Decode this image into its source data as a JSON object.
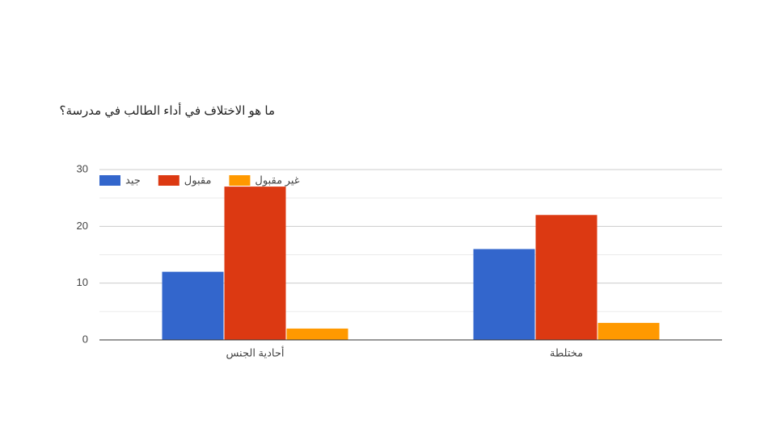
{
  "chart_data": {
    "type": "bar",
    "title": "ما هو الاختلاف في أداء الطالب في مدرسة؟",
    "categories": [
      "أحادية الجنس",
      "مختلطة"
    ],
    "series": [
      {
        "name": "جيد",
        "color": "#3366cc",
        "values": [
          12,
          16
        ]
      },
      {
        "name": "مقبول",
        "color": "#dc3912",
        "values": [
          27,
          22
        ]
      },
      {
        "name": "غير مقبول",
        "color": "#ff9900",
        "values": [
          2,
          3
        ]
      }
    ],
    "ylim": [
      0,
      30
    ],
    "yticks": [
      0,
      10,
      20,
      30
    ],
    "minor_yticks": [
      5,
      15,
      25
    ],
    "grid": true,
    "legend": "top-left"
  }
}
